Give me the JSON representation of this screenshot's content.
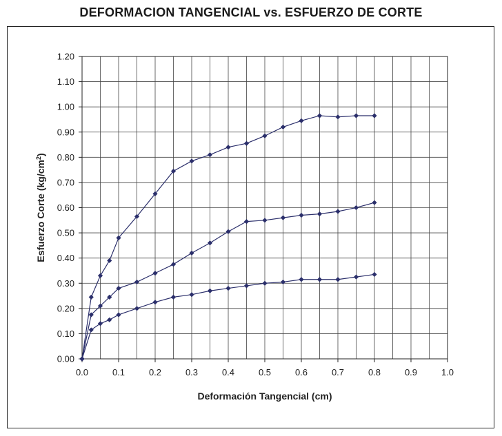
{
  "chart_data": {
    "type": "line",
    "title": "DEFORMACION TANGENCIAL vs. ESFUERZO DE CORTE",
    "xlabel": "Deformación Tangencial (cm)",
    "ylabel": "Esfuerzo Corte (kg/cm",
    "ylabel_sup": "2",
    "ylabel_end": ")",
    "xlim": [
      0,
      1.0
    ],
    "ylim": [
      0,
      1.2
    ],
    "x_ticks": [
      "0.0",
      "0.1",
      "0.2",
      "0.3",
      "0.4",
      "0.5",
      "0.6",
      "0.7",
      "0.8",
      "0.9",
      "1.0"
    ],
    "y_ticks": [
      "0.00",
      "0.10",
      "0.20",
      "0.30",
      "0.40",
      "0.50",
      "0.60",
      "0.70",
      "0.80",
      "0.90",
      "1.00",
      "1.10",
      "1.20"
    ],
    "grid": true,
    "legend": "none",
    "line_color": "#2b2f6b",
    "series": [
      {
        "x": [
          0,
          0.025,
          0.05,
          0.075,
          0.1,
          0.15,
          0.2,
          0.25,
          0.3,
          0.35,
          0.4,
          0.45,
          0.5,
          0.55,
          0.6,
          0.65,
          0.7,
          0.75,
          0.8
        ],
        "y": [
          0.0,
          0.245,
          0.33,
          0.39,
          0.48,
          0.565,
          0.655,
          0.745,
          0.785,
          0.81,
          0.84,
          0.855,
          0.885,
          0.92,
          0.945,
          0.965,
          0.96,
          0.965,
          0.965
        ]
      },
      {
        "x": [
          0,
          0.025,
          0.05,
          0.075,
          0.1,
          0.15,
          0.2,
          0.25,
          0.3,
          0.35,
          0.4,
          0.45,
          0.5,
          0.55,
          0.6,
          0.65,
          0.7,
          0.75,
          0.8
        ],
        "y": [
          0.0,
          0.175,
          0.21,
          0.245,
          0.28,
          0.305,
          0.34,
          0.375,
          0.42,
          0.46,
          0.505,
          0.545,
          0.55,
          0.56,
          0.57,
          0.575,
          0.585,
          0.6,
          0.62
        ]
      },
      {
        "x": [
          0,
          0.025,
          0.05,
          0.075,
          0.1,
          0.15,
          0.2,
          0.25,
          0.3,
          0.35,
          0.4,
          0.45,
          0.5,
          0.55,
          0.6,
          0.65,
          0.7,
          0.75,
          0.8
        ],
        "y": [
          0.0,
          0.115,
          0.14,
          0.155,
          0.175,
          0.2,
          0.225,
          0.245,
          0.255,
          0.27,
          0.28,
          0.29,
          0.3,
          0.305,
          0.315,
          0.315,
          0.315,
          0.325,
          0.335
        ]
      }
    ]
  }
}
